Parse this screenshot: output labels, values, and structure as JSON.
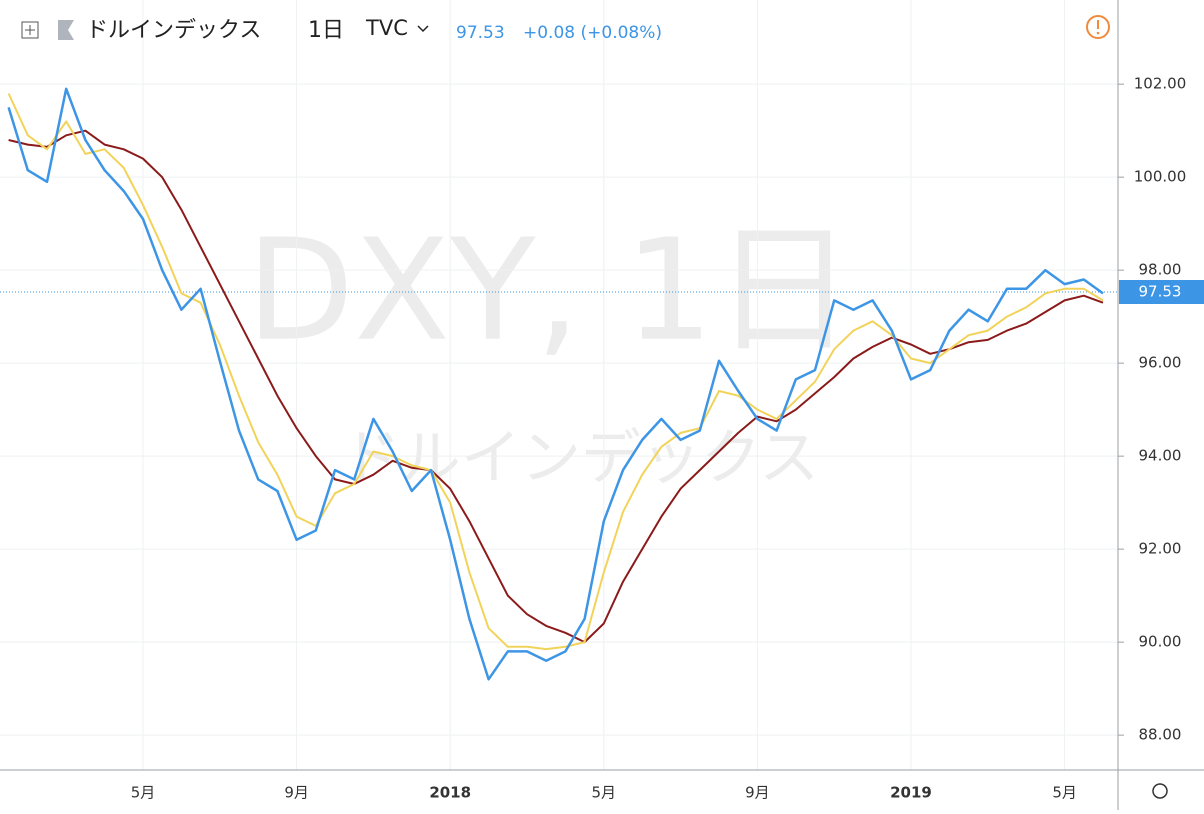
{
  "header": {
    "symbol": "ドルインデックス",
    "interval": "1日",
    "exchange": "TVC",
    "price": 97.53,
    "change": "+0.08 (+0.08%)"
  },
  "watermark": {
    "main": "DXY, 1日",
    "sub": "ドルインデックス"
  },
  "chart_data": {
    "type": "line",
    "categories": [
      null,
      null,
      null,
      null,
      null,
      null,
      null,
      "5月",
      null,
      null,
      null,
      null,
      null,
      null,
      null,
      "9月",
      null,
      null,
      null,
      null,
      null,
      null,
      null,
      "2018",
      null,
      null,
      null,
      null,
      null,
      null,
      null,
      "5月",
      null,
      null,
      null,
      null,
      null,
      null,
      null,
      "9月",
      null,
      null,
      null,
      null,
      null,
      null,
      null,
      "2019",
      null,
      null,
      null,
      null,
      null,
      null,
      null,
      "5月",
      null,
      null
    ],
    "series": [
      {
        "color": "#8b1a1a",
        "values": [
          100.8,
          100.7,
          100.65,
          100.9,
          101.0,
          100.7,
          100.6,
          100.4,
          100.0,
          99.3,
          98.5,
          97.7,
          96.9,
          96.1,
          95.3,
          94.6,
          94.0,
          93.5,
          93.4,
          93.6,
          93.9,
          93.75,
          93.7,
          93.3,
          92.6,
          91.8,
          91.0,
          90.6,
          90.35,
          90.2,
          90.0,
          90.4,
          91.3,
          92.0,
          92.7,
          93.3,
          93.7,
          94.1,
          94.5,
          94.85,
          94.75,
          95.0,
          95.35,
          95.7,
          96.1,
          96.35,
          96.55,
          96.4,
          96.2,
          96.3,
          96.45,
          96.5,
          96.7,
          96.85,
          97.1,
          97.35,
          97.45,
          97.3
        ]
      },
      {
        "color": "#f2d35a",
        "values": [
          101.8,
          100.9,
          100.6,
          101.2,
          100.5,
          100.6,
          100.2,
          99.4,
          98.5,
          97.5,
          97.3,
          96.4,
          95.3,
          94.3,
          93.6,
          92.7,
          92.5,
          93.2,
          93.4,
          94.1,
          94.0,
          93.8,
          93.7,
          93.0,
          91.5,
          90.3,
          89.9,
          89.9,
          89.85,
          89.9,
          90.0,
          91.5,
          92.8,
          93.6,
          94.2,
          94.5,
          94.6,
          95.4,
          95.3,
          95.0,
          94.8,
          95.2,
          95.6,
          96.3,
          96.7,
          96.9,
          96.6,
          96.1,
          96.0,
          96.3,
          96.6,
          96.7,
          97.0,
          97.2,
          97.5,
          97.6,
          97.6,
          97.35
        ]
      },
      {
        "color": "#3d95e6",
        "values": [
          101.5,
          100.15,
          99.9,
          101.9,
          100.8,
          100.15,
          99.7,
          99.1,
          98.0,
          97.15,
          97.6,
          96.05,
          94.55,
          93.5,
          93.25,
          92.2,
          92.4,
          93.7,
          93.5,
          94.8,
          94.1,
          93.25,
          93.7,
          92.2,
          90.5,
          89.2,
          89.8,
          89.8,
          89.6,
          89.8,
          90.5,
          92.6,
          93.7,
          94.35,
          94.8,
          94.35,
          94.55,
          96.05,
          95.4,
          94.8,
          94.55,
          95.65,
          95.85,
          97.35,
          97.15,
          97.35,
          96.7,
          95.65,
          95.85,
          96.7,
          97.15,
          96.9,
          97.6,
          97.6,
          98.0,
          97.7,
          97.8,
          97.5
        ]
      }
    ],
    "ylim": [
      87.25,
      103.81
    ],
    "yticks": [
      {
        "value": 88,
        "label": "88.00"
      },
      {
        "value": 90,
        "label": "90.00"
      },
      {
        "value": 92,
        "label": "92.00"
      },
      {
        "value": 94,
        "label": "94.00"
      },
      {
        "value": 96,
        "label": "96.00"
      },
      {
        "value": 98,
        "label": "98.00"
      },
      {
        "value": 100,
        "label": "100.00"
      },
      {
        "value": 102,
        "label": "102.00"
      }
    ],
    "grid": true
  }
}
